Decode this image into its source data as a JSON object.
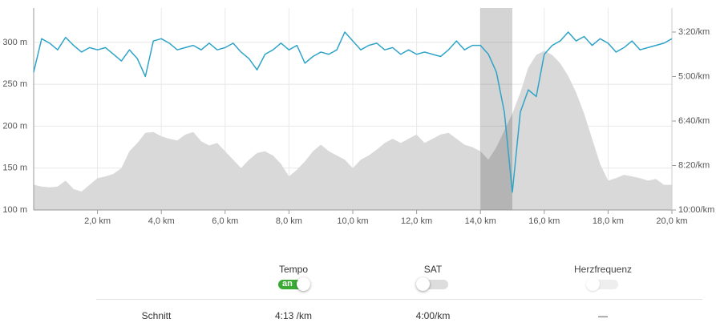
{
  "chart_data": {
    "type": "line",
    "x": [
      0,
      0.25,
      0.5,
      0.75,
      1,
      1.25,
      1.5,
      1.75,
      2,
      2.25,
      2.5,
      2.75,
      3,
      3.25,
      3.5,
      3.75,
      4,
      4.25,
      4.5,
      4.75,
      5,
      5.25,
      5.5,
      5.75,
      6,
      6.25,
      6.5,
      6.75,
      7,
      7.25,
      7.5,
      7.75,
      8,
      8.25,
      8.5,
      8.75,
      9,
      9.25,
      9.5,
      9.75,
      10,
      10.25,
      10.5,
      10.75,
      11,
      11.25,
      11.5,
      11.75,
      12,
      12.25,
      12.5,
      12.75,
      13,
      13.25,
      13.5,
      13.75,
      14,
      14.25,
      14.5,
      14.75,
      15,
      15.25,
      15.5,
      15.75,
      16,
      16.25,
      16.5,
      16.75,
      17,
      17.25,
      17.5,
      17.75,
      18,
      18.25,
      18.5,
      18.75,
      19,
      19.25,
      19.5,
      19.75,
      20
    ],
    "elevation": {
      "color": "#d9d9d9",
      "values": [
        130,
        128,
        127,
        128,
        135,
        125,
        122,
        130,
        138,
        140,
        143,
        150,
        170,
        180,
        192,
        193,
        188,
        185,
        183,
        190,
        193,
        182,
        177,
        180,
        170,
        160,
        150,
        160,
        168,
        170,
        165,
        155,
        140,
        148,
        158,
        170,
        178,
        170,
        165,
        160,
        150,
        160,
        165,
        172,
        180,
        185,
        180,
        185,
        190,
        180,
        185,
        190,
        192,
        185,
        178,
        175,
        170,
        160,
        175,
        195,
        215,
        240,
        270,
        285,
        290,
        285,
        275,
        260,
        240,
        215,
        185,
        155,
        135,
        138,
        142,
        140,
        138,
        135,
        137,
        130,
        130
      ]
    },
    "series": [
      {
        "color": "#2fa4c8",
        "axis": "y2",
        "values": [
          290,
          215,
          225,
          240,
          212,
          230,
          245,
          235,
          240,
          235,
          250,
          265,
          240,
          260,
          300,
          220,
          215,
          225,
          240,
          235,
          230,
          240,
          225,
          240,
          235,
          225,
          245,
          260,
          285,
          250,
          240,
          225,
          240,
          230,
          270,
          255,
          245,
          250,
          240,
          200,
          220,
          240,
          230,
          225,
          240,
          235,
          250,
          240,
          250,
          245,
          250,
          255,
          240,
          220,
          240,
          230,
          230,
          250,
          290,
          380,
          560,
          380,
          330,
          345,
          250,
          230,
          220,
          200,
          220,
          210,
          230,
          215,
          225,
          245,
          235,
          220,
          240,
          235,
          230,
          225,
          215
        ]
      }
    ],
    "highlight": [
      14,
      15
    ],
    "xlim": [
      0,
      20
    ],
    "xticks": [
      {
        "value": 2,
        "label": "2,0 km"
      },
      {
        "value": 4,
        "label": "4,0 km"
      },
      {
        "value": 6,
        "label": "6,0 km"
      },
      {
        "value": 8,
        "label": "8,0 km"
      },
      {
        "value": 10,
        "label": "10,0 km"
      },
      {
        "value": 12,
        "label": "12,0 km"
      },
      {
        "value": 14,
        "label": "14,0 km"
      },
      {
        "value": 16,
        "label": "16,0 km"
      },
      {
        "value": 18,
        "label": "18,0 km"
      },
      {
        "value": 20,
        "label": "20,0 km"
      }
    ],
    "ylim": [
      100,
      341
    ],
    "yticks": [
      {
        "value": 100,
        "label": "100 m"
      },
      {
        "value": 150,
        "label": "150 m"
      },
      {
        "value": 200,
        "label": "200 m"
      },
      {
        "value": 250,
        "label": "250 m"
      },
      {
        "value": 300,
        "label": "300 m"
      }
    ],
    "y2lim": [
      600,
      146
    ],
    "y2ticks": [
      {
        "value": 200,
        "label": "3:20/km"
      },
      {
        "value": 300,
        "label": "5:00/km"
      },
      {
        "value": 400,
        "label": "6:40/km"
      },
      {
        "value": 500,
        "label": "8:20/km"
      },
      {
        "value": 600,
        "label": "10:00/km"
      }
    ],
    "grid": true
  },
  "legend": [
    {
      "label": "Tempo",
      "switch": "an",
      "on": true
    },
    {
      "label": "SAT",
      "on": false
    },
    {
      "label": "Herzfrequenz",
      "on": false,
      "disabled": true
    }
  ],
  "summary": {
    "label": "Schnitt",
    "values": [
      "4:13 /km",
      "4:00/km",
      "—"
    ]
  }
}
